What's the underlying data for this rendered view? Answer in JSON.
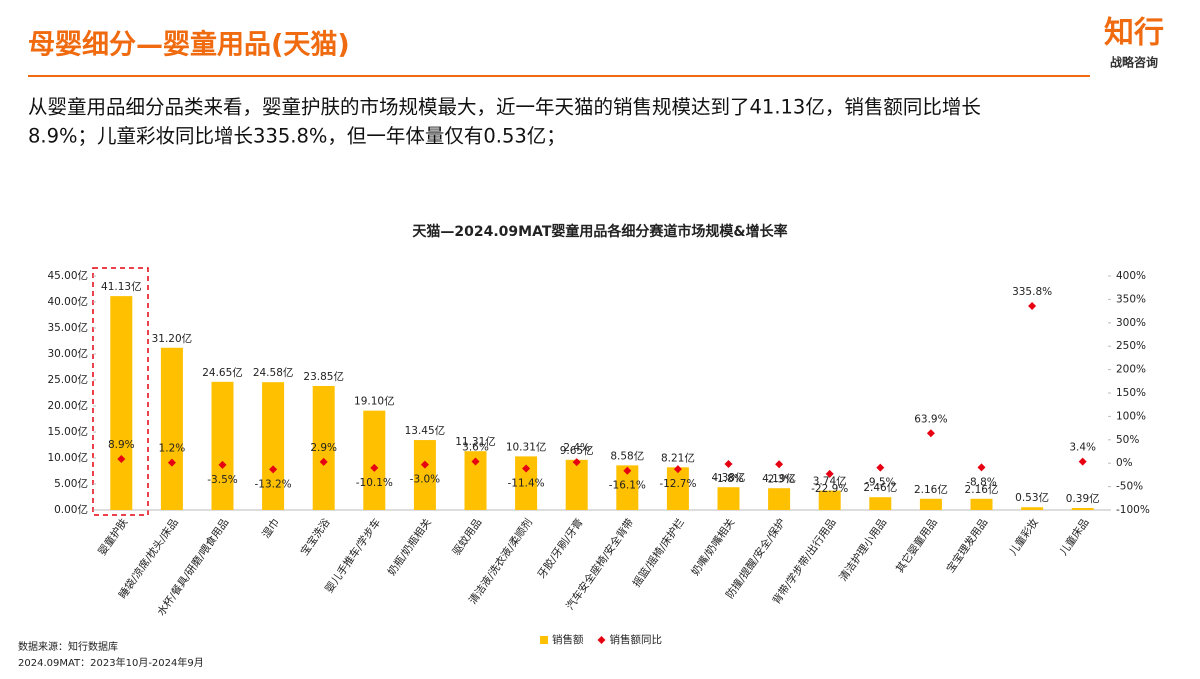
{
  "header": {
    "title": "母婴细分—婴童用品(天猫)",
    "logo": "知行",
    "logo_sub": "战略咨询"
  },
  "summary": [
    "从婴童用品细分品类来看，婴童护肤的市场规模最大，近一年天猫的销售规模达到了41.13亿，销售额同比增长",
    "8.9%；儿童彩妆同比增长335.8%，但一年体量仅有0.53亿；"
  ],
  "source": [
    "数据来源：知行数据库",
    "2024.09MAT：2023年10月-2024年9月"
  ],
  "chart_data": {
    "type": "bar",
    "title": "天猫—2024.09MAT婴童用品各细分赛道市场规模&增长率",
    "categories": [
      "婴童护肤",
      "睡袋/凉席/枕头/床品",
      "水杯/餐具/研磨/喂食用品",
      "湿巾",
      "宝宝洗浴",
      "婴儿手推车/学步车",
      "奶瓶/奶瓶相关",
      "驱蚊用品",
      "清洁液/洗衣液/柔顺剂",
      "牙胶/牙刷/牙膏",
      "汽车安全座椅/安全背带",
      "摇篮/摇椅/床护栏",
      "奶嘴/奶嘴相关",
      "防撞/提醒/安全/保护",
      "背带/学步带/出行用品",
      "清洁护理小用品",
      "其它婴童用品",
      "宝宝理发用品",
      "儿童彩妆",
      "儿童床品"
    ],
    "series": [
      {
        "name": "销售额",
        "type": "bar",
        "color": "#ffc000",
        "values": [
          41.13,
          31.2,
          24.65,
          24.58,
          23.85,
          19.1,
          13.45,
          11.31,
          10.31,
          9.65,
          8.58,
          8.21,
          4.38,
          4.19,
          3.74,
          2.46,
          2.16,
          2.16,
          0.53,
          0.39
        ],
        "value_labels": [
          "41.13亿",
          "31.20亿",
          "24.65亿",
          "24.58亿",
          "23.85亿",
          "19.10亿",
          "13.45亿",
          "11.31亿",
          "10.31亿",
          "9.65亿",
          "8.58亿",
          "8.21亿",
          "4.38亿",
          "4.19亿",
          "3.74亿",
          "2.46亿",
          "2.16亿",
          "2.16亿",
          "0.53亿",
          "0.39亿"
        ]
      },
      {
        "name": "销售额同比",
        "type": "scatter",
        "axis": "y2",
        "color": "#e60012",
        "values": [
          8.9,
          1.2,
          -3.5,
          -13.2,
          2.9,
          -10.1,
          -3.0,
          3.6,
          -11.4,
          2.4,
          -16.1,
          -12.7,
          -1.8,
          -2.3,
          -22.9,
          -9.5,
          63.9,
          -8.8,
          335.8,
          3.4
        ],
        "value_labels": [
          "8.9%",
          "1.2%",
          "-3.5%",
          "-13.2%",
          "2.9%",
          "-10.1%",
          "-3.0%",
          "3.6%",
          "-11.4%",
          "2.4%",
          "-16.1%",
          "-12.7%",
          "-1.8%",
          "-2.3%",
          "-22.9%",
          "-9.5%",
          "63.9%",
          "-8.8%",
          "335.8%",
          "3.4%"
        ]
      }
    ],
    "ylim": [
      0,
      45
    ],
    "yticks": [
      {
        "value": 0,
        "label": "0.00亿"
      },
      {
        "value": 5,
        "label": "5.00亿"
      },
      {
        "value": 10,
        "label": "10.00亿"
      },
      {
        "value": 15,
        "label": "15.00亿"
      },
      {
        "value": 20,
        "label": "20.00亿"
      },
      {
        "value": 25,
        "label": "25.00亿"
      },
      {
        "value": 30,
        "label": "30.00亿"
      },
      {
        "value": 35,
        "label": "35.00亿"
      },
      {
        "value": 40,
        "label": "40.00亿"
      },
      {
        "value": 45,
        "label": "45.00亿"
      }
    ],
    "y2lim": [
      -100,
      400
    ],
    "y2ticks": [
      {
        "value": -100,
        "label": "-100%"
      },
      {
        "value": -50,
        "label": "-50%"
      },
      {
        "value": 0,
        "label": "0%"
      },
      {
        "value": 50,
        "label": "50%"
      },
      {
        "value": 100,
        "label": "100%"
      },
      {
        "value": 150,
        "label": "150%"
      },
      {
        "value": 200,
        "label": "200%"
      },
      {
        "value": 250,
        "label": "250%"
      },
      {
        "value": 300,
        "label": "300%"
      },
      {
        "value": 350,
        "label": "350%"
      },
      {
        "value": 400,
        "label": "400%"
      }
    ],
    "legend": "bottom"
  }
}
